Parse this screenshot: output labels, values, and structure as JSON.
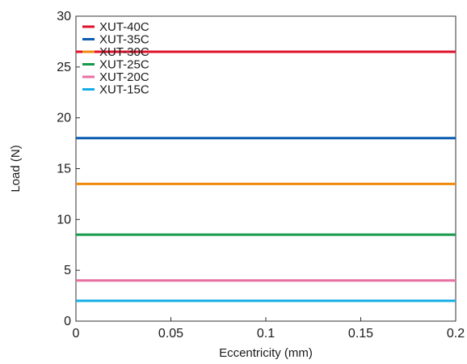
{
  "chart_data": {
    "type": "line",
    "title": "",
    "xlabel": "Eccentricity (mm)",
    "ylabel": "Load (N)",
    "xlim": [
      0,
      0.2
    ],
    "ylim": [
      0,
      30
    ],
    "x": [
      0,
      0.2
    ],
    "x_ticks": [
      0,
      0.05,
      0.1,
      0.15,
      0.2
    ],
    "x_tick_labels": [
      "0",
      "0.05",
      "0.1",
      "0.15",
      "0.2"
    ],
    "y_ticks": [
      0,
      5,
      10,
      15,
      20,
      25,
      30
    ],
    "y_tick_labels": [
      "0",
      "5",
      "10",
      "15",
      "20",
      "25",
      "30"
    ],
    "grid": false,
    "legend_position": "top-left",
    "series": [
      {
        "name": "XUT-40C",
        "values": [
          26.5,
          26.5
        ],
        "color": "#e0102a"
      },
      {
        "name": "XUT-35C",
        "values": [
          18,
          18
        ],
        "color": "#0a5cb0"
      },
      {
        "name": "XUT-30C",
        "values": [
          13.5,
          13.5
        ],
        "color": "#f08a0e"
      },
      {
        "name": "XUT-25C",
        "values": [
          8.5,
          8.5
        ],
        "color": "#15994a"
      },
      {
        "name": "XUT-20C",
        "values": [
          4,
          4
        ],
        "color": "#e86fa2"
      },
      {
        "name": "XUT-15C",
        "values": [
          2,
          2
        ],
        "color": "#14aee6"
      }
    ]
  }
}
